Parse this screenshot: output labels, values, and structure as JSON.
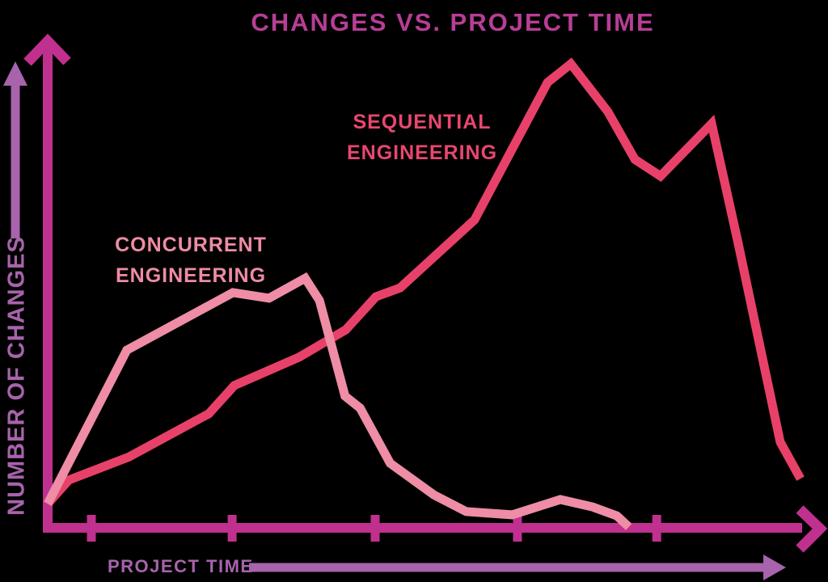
{
  "title": "CHANGES VS. PROJECT TIME",
  "colors": {
    "background": "#000000",
    "title": "#b73e95",
    "axis": "#c0308f",
    "axis_label_purple": "#a763ab"
  },
  "chart_data": {
    "type": "line",
    "title": "CHANGES VS. PROJECT TIME",
    "xlabel": "PROJECT TIME",
    "ylabel": "NUMBER OF CHANGES",
    "x_axis": {
      "range": [
        0,
        100
      ],
      "tick_labels": [],
      "ticks_x": [
        5.8,
        24.5,
        43.5,
        62.4,
        80.9
      ],
      "arrow": true
    },
    "y_axis": {
      "range": [
        0,
        100
      ],
      "tick_labels": [],
      "arrow": true
    },
    "grid": false,
    "legend_position": "inline-annotations",
    "series": [
      {
        "name": "Sequential Engineering",
        "label_lines": [
          "SEQUENTIAL",
          "ENGINEERING"
        ],
        "color": "#e84169",
        "label_color": "#e8476f",
        "points": [
          [
            0,
            5.2
          ],
          [
            2.8,
            10.3
          ],
          [
            10.8,
            15.3
          ],
          [
            21.4,
            24.6
          ],
          [
            24.8,
            30.7
          ],
          [
            33.4,
            36.8
          ],
          [
            39.6,
            42.7
          ],
          [
            43.6,
            49.8
          ],
          [
            46.8,
            51.7
          ],
          [
            56.7,
            66.4
          ],
          [
            66.4,
            96
          ],
          [
            69.5,
            100
          ],
          [
            74.4,
            89.7
          ],
          [
            78,
            79.4
          ],
          [
            81.4,
            75.8
          ],
          [
            88.2,
            87.1
          ],
          [
            91.7,
            61.5
          ],
          [
            97.3,
            18.5
          ],
          [
            100,
            10.6
          ]
        ]
      },
      {
        "name": "Concurrent Engineering",
        "label_lines": [
          "CONCURRENT",
          "ENGINEERING"
        ],
        "color": "#ee8da5",
        "label_color": "#ee8ca4",
        "points": [
          [
            0,
            5.2
          ],
          [
            10.5,
            38.3
          ],
          [
            24.6,
            50.7
          ],
          [
            29.4,
            49.5
          ],
          [
            34.2,
            53.8
          ],
          [
            36.1,
            49
          ],
          [
            39.5,
            28.4
          ],
          [
            41.5,
            25.8
          ],
          [
            45.5,
            13.9
          ],
          [
            51.3,
            7.1
          ],
          [
            55.6,
            3.5
          ],
          [
            61.7,
            2.8
          ],
          [
            68.1,
            6.1
          ],
          [
            72.4,
            4.5
          ],
          [
            75.6,
            2.6
          ],
          [
            77.2,
            0.2
          ]
        ]
      }
    ]
  }
}
